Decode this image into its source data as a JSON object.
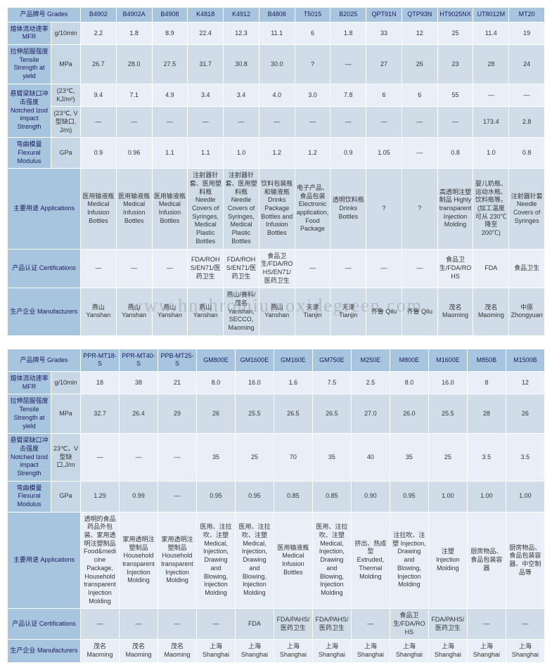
{
  "watermark": "www.hnchromiumoxidegreen.com",
  "labels": {
    "grades": "产品牌号\nGrades",
    "mfr": "熔体流动速率\nMFR",
    "tensile": "拉伸屈服强度\nTensile Strength at yield",
    "izod": "悬臂梁缺口冲击强度\nNotched Izod impact Strength",
    "flex": "弯曲模量\nFlexural Modulus",
    "apps": "主要用途\nApplications",
    "cert": "产品认证\nCertifications",
    "mfrs": "生产企业\nManufacturers"
  },
  "units": {
    "mfr": "g/10min",
    "mpa": "MPa",
    "gpa": "GPa",
    "izod1": "(23℃, KJ/m²)",
    "izod2": "(23℃, V 型缺口, J/m)",
    "izod3": "23℃，V型缺口,J/m"
  },
  "t1": {
    "grades": [
      "B4902",
      "B4902A",
      "B4908",
      "K4818",
      "K4912",
      "B4808",
      "T5015",
      "B2025",
      "QPT91N",
      "QTP93N",
      "HT9025NX",
      "UT8012M",
      "MT20"
    ],
    "mfr": [
      "2.2",
      "1.8",
      "8.9",
      "22.4",
      "12.3",
      "11.1",
      "6",
      "1.8",
      "33",
      "12",
      "25",
      "11.4",
      "19"
    ],
    "tensile": [
      "26.7",
      "28.0",
      "27.5",
      "31.7",
      "30.8",
      "30.0",
      "?",
      "—",
      "27",
      "26",
      "23",
      "28",
      "24"
    ],
    "izod1": [
      "9.4",
      "7.1",
      "4.9",
      "3.4",
      "3.4",
      "4.0",
      "3.0",
      "7.8",
      "6",
      "6",
      "55",
      "—",
      "—"
    ],
    "izod2": [
      "—",
      "—",
      "—",
      "—",
      "—",
      "—",
      "—",
      "—",
      "—",
      "—",
      "—",
      "173.4",
      "2.8"
    ],
    "flex": [
      "0.9",
      "0.96",
      "1.1",
      "1.1",
      "1.0",
      "1.2",
      "1.2",
      "0.9",
      "1.05",
      "—",
      "0.8",
      "1.0",
      "0.8"
    ],
    "apps": [
      "医用输液瓶\nMedical Infusion Bottles",
      "医用输液瓶\nMedical Infusion Bottles",
      "医用输液瓶\nMedical Infusion Bottles",
      "注射器针套、医用塑料瓶\nNeedle Covers of Syringes, Medical Plastic Bottles",
      "注射器针套、医用塑料瓶\nNeedle Covers of Syringes, Medical Plastic Bottles",
      "饮料包装瓶和输液瓶\nDrinks Package Bottles and Infusion Bottles",
      "电子产品、食品包装\nElectronic application, Food Package",
      "透明饮料瓶\nDrinks Bottles",
      "?",
      "?",
      "高透明注塑制品\nHighly transparent Injection Molding",
      "婴儿奶瓶、运动水瓶、饮料瓶等。(加工温度可从 230℃ 降至 200℃)",
      "注射器针套\nNeedle Covers of Syringes"
    ],
    "cert": [
      "—",
      "—",
      "—",
      "FDA/ROHS/EN71/医药卫生",
      "FDA/ROHS/EN71/医药卫生",
      "食品卫生/FDA/ROHS/EN71/医药卫生",
      "—",
      "—",
      "—",
      "—",
      "食品卫生/FDA/ROHS",
      "FDA",
      "食品卫生"
    ],
    "mfrs": [
      "燕山\nYanshan",
      "燕山\nYanshan",
      "燕山\nYanshan",
      "燕山\nYanshan",
      "燕山/赛科/茂名\nYanshan, SECCO, Maoming",
      "燕山\nYanshan",
      "天津\nTianjin",
      "天津\nTianjin",
      "齐鲁\nQilu",
      "齐鲁\nQilu",
      "茂名\nMaoming",
      "茂名\nMaoming",
      "中原\nZhongyuan"
    ]
  },
  "t2": {
    "grades": [
      "PPR-MT18-S",
      "PPR-MT40-S",
      "PPB-MT25-S",
      "GM800E",
      "GM1600E",
      "GM160E",
      "GM750E",
      "M250E",
      "M800E",
      "M1600E",
      "M850B",
      "M1500B"
    ],
    "mfr": [
      "18",
      "38",
      "21",
      "8.0",
      "16.0",
      "1.6",
      "7.5",
      "2.5",
      "8.0",
      "16.0",
      "8",
      "12"
    ],
    "tensile": [
      "32.7",
      "26.4",
      "29",
      "26",
      "25.5",
      "26.5",
      "26.5",
      "27.0",
      "26.0",
      "25.5",
      "28",
      "26"
    ],
    "izod": [
      "—",
      "—",
      "—",
      "35",
      "25",
      "70",
      "35",
      "40",
      "35",
      "25",
      "3.5",
      "3.5"
    ],
    "flex": [
      "1.29",
      "0.99",
      "—",
      "0.95",
      "0.95",
      "0.85",
      "0.85",
      "0.90",
      "0.95",
      "1.00",
      "1.00",
      "1.00"
    ],
    "apps": [
      "透明的食品药品外包装、家用透明注塑制品\nFood&medicine Package, Household transparent Injection Molding",
      "家用透明注塑制品 Household transparent Injection Molding",
      "家用透明注塑制品 Household transparent Injection Molding",
      "医用、注拉吹、注塑\nMedical, Injection, Drawing and Blowing, Injection Molding",
      "医用、注拉吹、注塑\nMedical, Injection, Drawing and Blowing, Injection Molding",
      "医用输液瓶\nMedical Infusion Bottles",
      "医用、注拉吹、注塑\nMedical, Injection, Drawing and Blowing, Injection Molding",
      "挤出、热成型\nExtruded, Thermal Molding",
      "注拉吹、注塑\nInjection, Drawing and Blowing, Injection Molding",
      "注塑\nInjection Molding",
      "厨房物品、食品包装容器",
      "厨房物品、食品包装容器、中空制品等"
    ],
    "cert": [
      "—",
      "—",
      "—",
      "—",
      "FDA",
      "FDA/PAHS/ 医药卫生",
      "FDA/PAHS/ 医药卫生",
      "—",
      "食品卫生/FDA/ROHS",
      "FDA/PAHS/ 医药卫生",
      "—",
      "—"
    ],
    "mfrs": [
      "茂名\nMaoming",
      "茂名\nMaoming",
      "茂名\nMaoming",
      "上海\nShanghai",
      "上海\nShanghai",
      "上海\nShanghai",
      "上海\nShanghai",
      "上海\nShanghai",
      "上海\nShanghai",
      "上海\nShanghai",
      "上海\nShanghai",
      "上海\nShanghai"
    ]
  }
}
